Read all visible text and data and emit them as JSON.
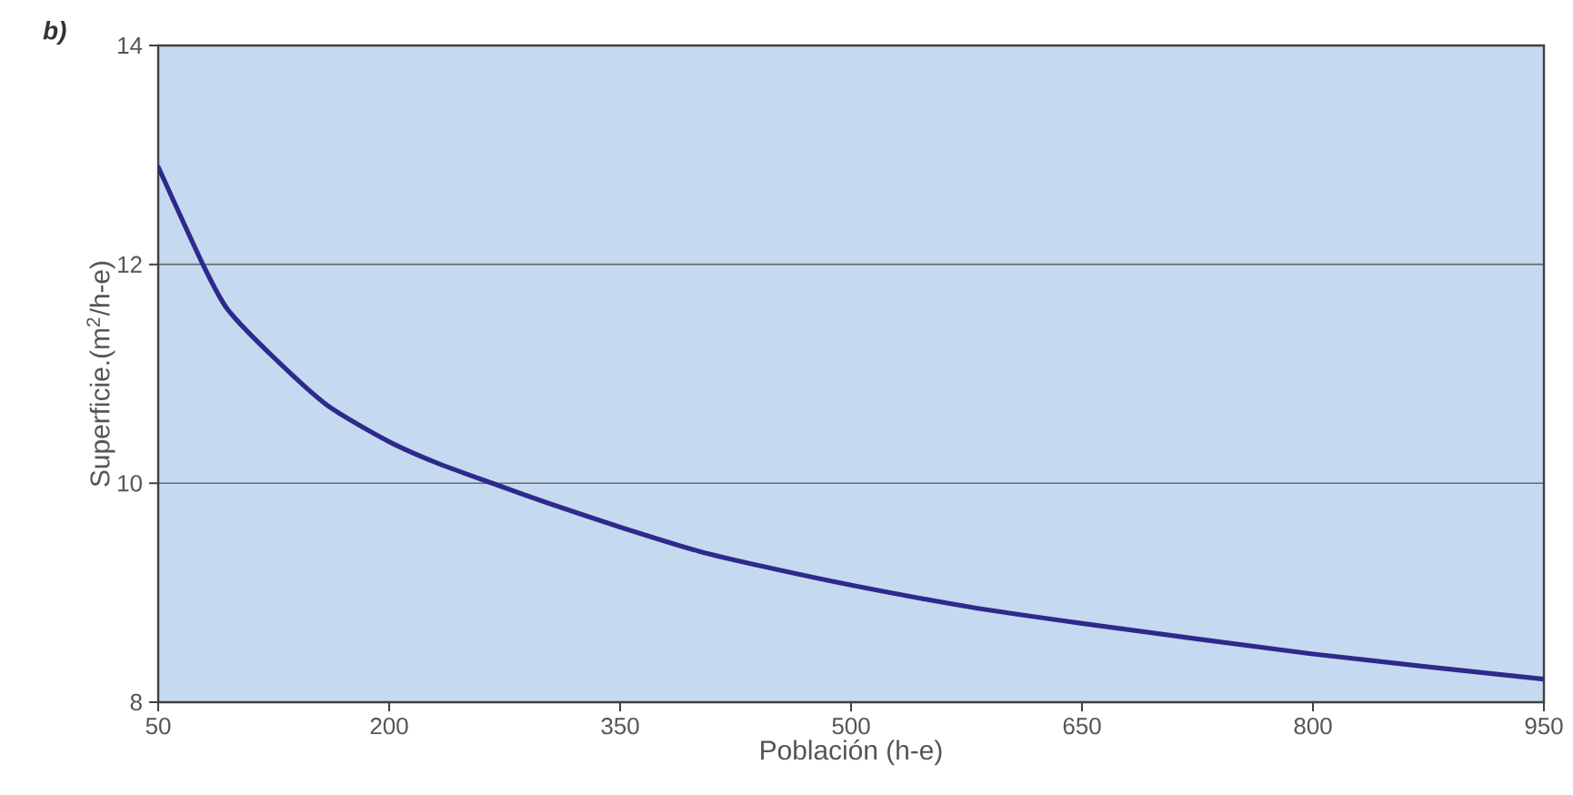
{
  "chart_data": {
    "type": "line",
    "title": "b)",
    "xlabel": "Población (h-e)",
    "ylabel": "Superficie.(m$^{2}$/h-e)",
    "x": [
      50,
      79,
      95,
      125,
      160,
      200,
      232,
      267,
      303,
      350,
      401,
      443,
      500,
      577,
      650,
      800,
      950
    ],
    "series": [
      {
        "color": "#2e2a8c",
        "values": [
          12.89,
          12.0,
          11.59,
          11.15,
          10.71,
          10.38,
          10.18,
          10.0,
          9.82,
          9.6,
          9.38,
          9.24,
          9.07,
          8.87,
          8.72,
          8.44,
          8.21
        ]
      }
    ],
    "xlim": [
      50,
      950
    ],
    "ylim": [
      8,
      14
    ],
    "xticks": [
      50,
      200,
      350,
      500,
      650,
      800,
      950
    ],
    "yticks": [
      8,
      10,
      12,
      14
    ],
    "grid": "y",
    "line_style": "solid",
    "marker": "none"
  }
}
